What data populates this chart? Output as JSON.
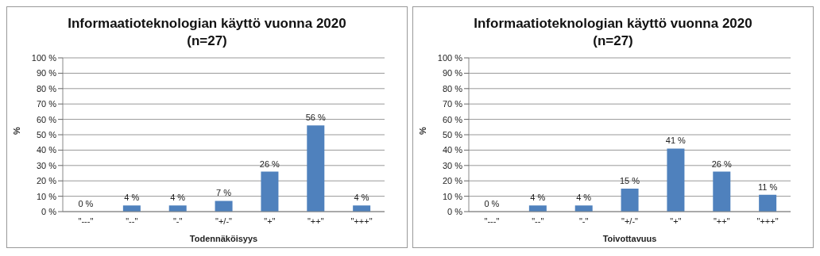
{
  "chart_data": [
    {
      "type": "bar",
      "title": "Informaatioteknologian käyttö vuonna 2020\n(n=27)",
      "xlabel": "Todennäköisyys",
      "ylabel": "%",
      "categories": [
        "\"---\"",
        "\"--\"",
        "\"-\"",
        "\"+/-\"",
        "\"+\"",
        "\"++\"",
        "\"+++\""
      ],
      "color": "#4f81bd",
      "values": [
        0,
        4,
        4,
        7,
        26,
        56,
        4
      ],
      "value_labels": [
        "0 %",
        "4 %",
        "4 %",
        "7 %",
        "26 %",
        "56 %",
        "4 %"
      ],
      "ylim": [
        0,
        100
      ],
      "yticks": [
        {
          "value": 0,
          "label": "0 %"
        },
        {
          "value": 10,
          "label": "10 %"
        },
        {
          "value": 20,
          "label": "20 %"
        },
        {
          "value": 30,
          "label": "30 %"
        },
        {
          "value": 40,
          "label": "40 %"
        },
        {
          "value": 50,
          "label": "50 %"
        },
        {
          "value": 60,
          "label": "60 %"
        },
        {
          "value": 70,
          "label": "70 %"
        },
        {
          "value": 80,
          "label": "80 %"
        },
        {
          "value": 90,
          "label": "90 %"
        },
        {
          "value": 100,
          "label": "100 %"
        }
      ],
      "grid": "y",
      "legend": false
    },
    {
      "type": "bar",
      "title": "Informaatioteknologian käyttö vuonna 2020\n(n=27)",
      "xlabel": "Toivottavuus",
      "ylabel": "%",
      "categories": [
        "\"---\"",
        "\"--\"",
        "\"-\"",
        "\"+/-\"",
        "\"+\"",
        "\"++\"",
        "\"+++\""
      ],
      "color": "#4f81bd",
      "values": [
        0,
        4,
        4,
        15,
        41,
        26,
        11
      ],
      "value_labels": [
        "0 %",
        "4 %",
        "4 %",
        "15 %",
        "41 %",
        "26 %",
        "11 %"
      ],
      "ylim": [
        0,
        100
      ],
      "yticks": [
        {
          "value": 0,
          "label": "0 %"
        },
        {
          "value": 10,
          "label": "10 %"
        },
        {
          "value": 20,
          "label": "20 %"
        },
        {
          "value": 30,
          "label": "30 %"
        },
        {
          "value": 40,
          "label": "40 %"
        },
        {
          "value": 50,
          "label": "50 %"
        },
        {
          "value": 60,
          "label": "60 %"
        },
        {
          "value": 70,
          "label": "70 %"
        },
        {
          "value": 80,
          "label": "80 %"
        },
        {
          "value": 90,
          "label": "90 %"
        },
        {
          "value": 100,
          "label": "100 %"
        }
      ],
      "grid": "y",
      "legend": false
    }
  ]
}
